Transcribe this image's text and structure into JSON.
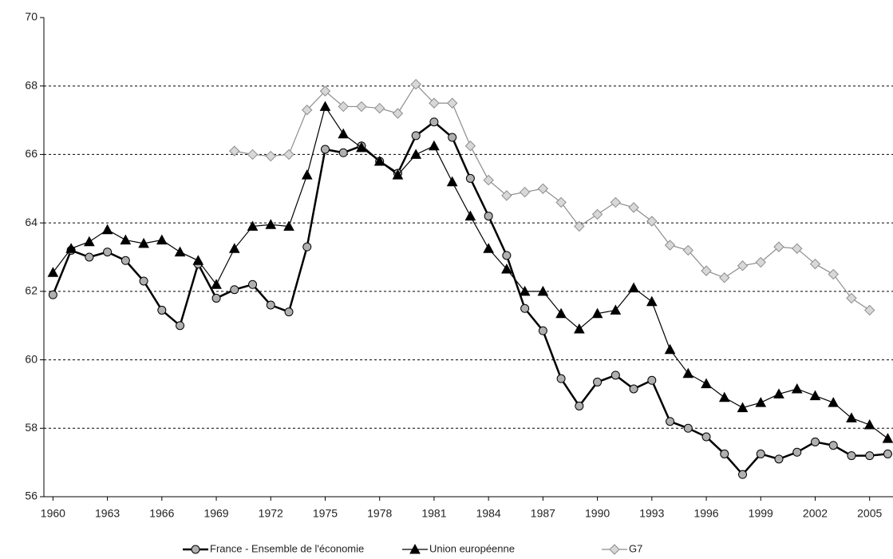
{
  "chart_data": {
    "type": "line",
    "x": [
      1960,
      1961,
      1962,
      1963,
      1964,
      1965,
      1966,
      1967,
      1968,
      1969,
      1970,
      1971,
      1972,
      1973,
      1974,
      1975,
      1976,
      1977,
      1978,
      1979,
      1980,
      1981,
      1982,
      1983,
      1984,
      1985,
      1986,
      1987,
      1988,
      1989,
      1990,
      1991,
      1992,
      1993,
      1994,
      1995,
      1996,
      1997,
      1998,
      1999,
      2000,
      2001,
      2002,
      2003,
      2004,
      2005,
      2006
    ],
    "series": [
      {
        "name": "France - Ensemble de l'économie",
        "color": "#000000",
        "marker": "circle",
        "values": [
          61.9,
          63.2,
          63.0,
          63.15,
          62.9,
          62.3,
          61.45,
          61.0,
          62.8,
          61.8,
          62.05,
          62.2,
          61.6,
          61.4,
          63.3,
          66.15,
          66.05,
          66.25,
          65.8,
          65.45,
          66.55,
          66.95,
          66.5,
          65.3,
          64.2,
          63.05,
          61.5,
          60.85,
          59.45,
          58.65,
          59.35,
          59.55,
          59.15,
          59.4,
          58.2,
          58.0,
          57.75,
          57.25,
          56.65,
          57.25,
          57.1,
          57.3,
          57.6,
          57.5,
          57.2,
          57.2,
          57.25
        ]
      },
      {
        "name": "Union européenne",
        "color": "#000000",
        "marker": "triangle",
        "values": [
          62.55,
          63.25,
          63.45,
          63.8,
          63.5,
          63.4,
          63.5,
          63.15,
          62.9,
          62.2,
          63.25,
          63.9,
          63.95,
          63.9,
          65.4,
          67.4,
          66.6,
          66.2,
          65.8,
          65.4,
          66.0,
          66.25,
          65.2,
          64.2,
          63.25,
          62.65,
          62.0,
          62.0,
          61.35,
          60.9,
          61.35,
          61.45,
          62.1,
          61.7,
          60.3,
          59.6,
          59.3,
          58.9,
          58.6,
          58.75,
          59.0,
          59.15,
          58.95,
          58.75,
          58.3,
          58.1,
          57.7
        ]
      },
      {
        "name": "G7",
        "color": "#8c8c8c",
        "marker": "diamond",
        "values": [
          null,
          null,
          null,
          null,
          null,
          null,
          null,
          null,
          null,
          null,
          66.1,
          66.0,
          65.95,
          66.0,
          67.3,
          67.85,
          67.4,
          67.4,
          67.35,
          67.2,
          68.05,
          67.5,
          67.5,
          66.25,
          65.25,
          64.8,
          64.9,
          65.0,
          64.6,
          63.9,
          64.25,
          64.6,
          64.45,
          64.05,
          63.35,
          63.2,
          62.6,
          62.4,
          62.75,
          62.85,
          63.3,
          63.25,
          62.8,
          62.5,
          61.8,
          61.45,
          null
        ]
      }
    ],
    "xlim": [
      1959.5,
      2006.2
    ],
    "xticks": [
      1960,
      1963,
      1966,
      1969,
      1972,
      1975,
      1978,
      1981,
      1984,
      1987,
      1990,
      1993,
      1996,
      1999,
      2002,
      2005
    ],
    "ylim": [
      56,
      70
    ],
    "yticks": [
      56,
      58,
      60,
      62,
      64,
      66,
      68,
      70
    ],
    "grid": true
  }
}
